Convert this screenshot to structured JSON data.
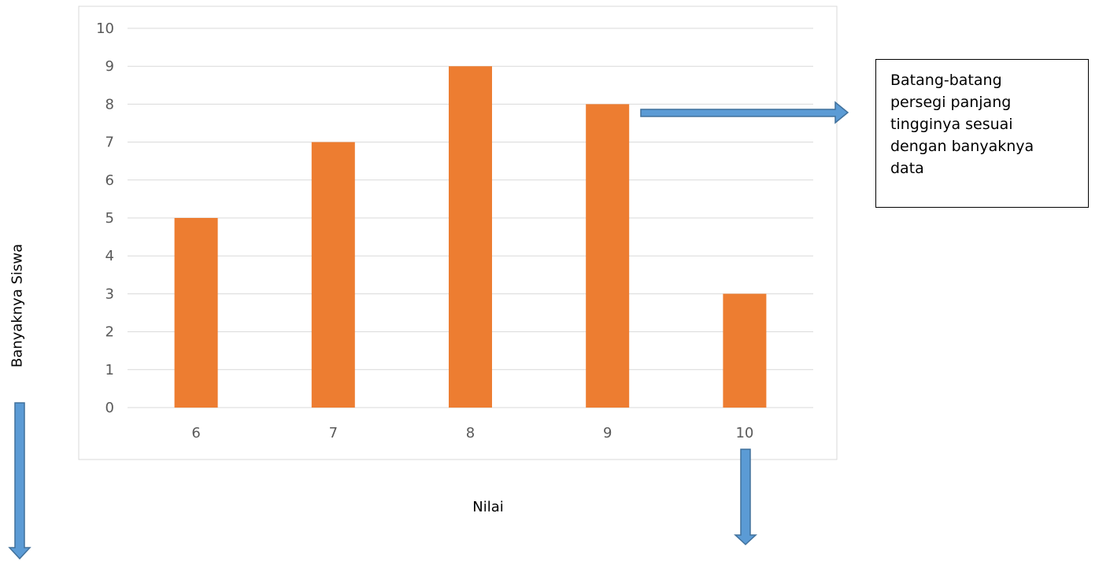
{
  "chart_data": {
    "type": "bar",
    "categories": [
      "6",
      "7",
      "8",
      "9",
      "10"
    ],
    "values": [
      5,
      7,
      9,
      8,
      3
    ],
    "title": "",
    "xlabel": "Nilai",
    "ylabel": "Banyaknya Siswa",
    "ylim": [
      0,
      10
    ],
    "yticks": [
      0,
      1,
      2,
      3,
      4,
      5,
      6,
      7,
      8,
      9,
      10
    ],
    "grid": true,
    "legend": "none"
  },
  "annotation": {
    "lines": [
      "Batang-batang",
      "persegi panjang",
      "tingginya sesuai",
      "dengan banyaknya",
      "data"
    ]
  },
  "colors": {
    "bar": "#ED7D31",
    "arrow": "#5B9BD5",
    "arrow_outline": "#41719C",
    "grid": "#D9D9D9",
    "tick_text": "#595959"
  }
}
